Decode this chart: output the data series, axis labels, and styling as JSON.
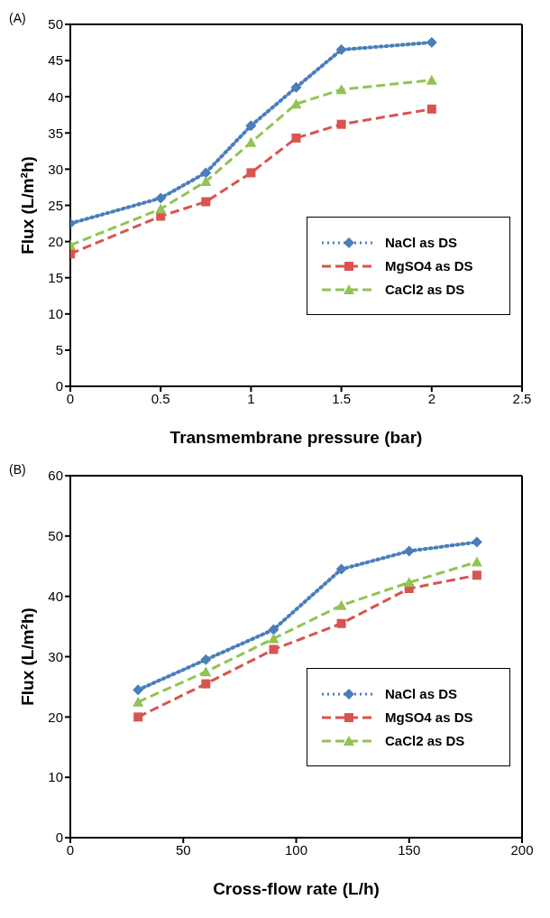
{
  "chart_data": [
    {
      "type": "line",
      "title": "(A)",
      "xlabel": "Transmembrane pressure (bar)",
      "ylabel": "Flux (L/m²h)",
      "x": [
        0,
        0.5,
        0.75,
        1,
        1.25,
        1.5,
        2
      ],
      "xlim": [
        0,
        2.5
      ],
      "xticks": [
        0,
        0.5,
        1,
        1.5,
        2,
        2.5
      ],
      "ylim": [
        0,
        50
      ],
      "yticks": [
        0,
        5,
        10,
        15,
        20,
        25,
        30,
        35,
        40,
        45,
        50
      ],
      "grid": false,
      "legend": "bottom right",
      "series": [
        {
          "name": "NaCl as DS",
          "color": "#4a7ebb",
          "marker": "diamond",
          "line_style": "dotted",
          "values": [
            22.5,
            26,
            29.5,
            36,
            41.3,
            46.5,
            47.5
          ]
        },
        {
          "name": "MgSO4 as DS",
          "color": "#d9534f",
          "marker": "square",
          "line_style": "dashed",
          "values": [
            18.3,
            23.5,
            25.5,
            29.5,
            34.3,
            36.2,
            38.3
          ]
        },
        {
          "name": "CaCl2 as DS",
          "color": "#92c353",
          "marker": "triangle",
          "line_style": "dashed",
          "values": [
            19.5,
            24.5,
            28.3,
            33.7,
            39,
            41,
            42.3
          ]
        }
      ]
    },
    {
      "type": "line",
      "title": "(B)",
      "xlabel": "Cross-flow rate (L/h)",
      "ylabel": "Flux (L/m²h)",
      "x": [
        30,
        60,
        90,
        120,
        150,
        180
      ],
      "xlim": [
        0,
        200
      ],
      "xticks": [
        0,
        50,
        100,
        150,
        200
      ],
      "ylim": [
        0,
        60
      ],
      "yticks": [
        0,
        10,
        20,
        30,
        40,
        50,
        60
      ],
      "grid": false,
      "legend": "bottom right",
      "series": [
        {
          "name": "NaCl as DS",
          "color": "#4a7ebb",
          "marker": "diamond",
          "line_style": "dotted",
          "values": [
            24.5,
            29.5,
            34.5,
            44.5,
            47.5,
            49
          ]
        },
        {
          "name": "MgSO4 as DS",
          "color": "#d9534f",
          "marker": "square",
          "line_style": "dashed",
          "values": [
            20,
            25.5,
            31.2,
            35.5,
            41.3,
            43.5
          ]
        },
        {
          "name": "CaCl2 as DS",
          "color": "#92c353",
          "marker": "triangle",
          "line_style": "dashed",
          "values": [
            22.5,
            27.5,
            33,
            38.5,
            42.3,
            45.7
          ]
        }
      ]
    }
  ]
}
